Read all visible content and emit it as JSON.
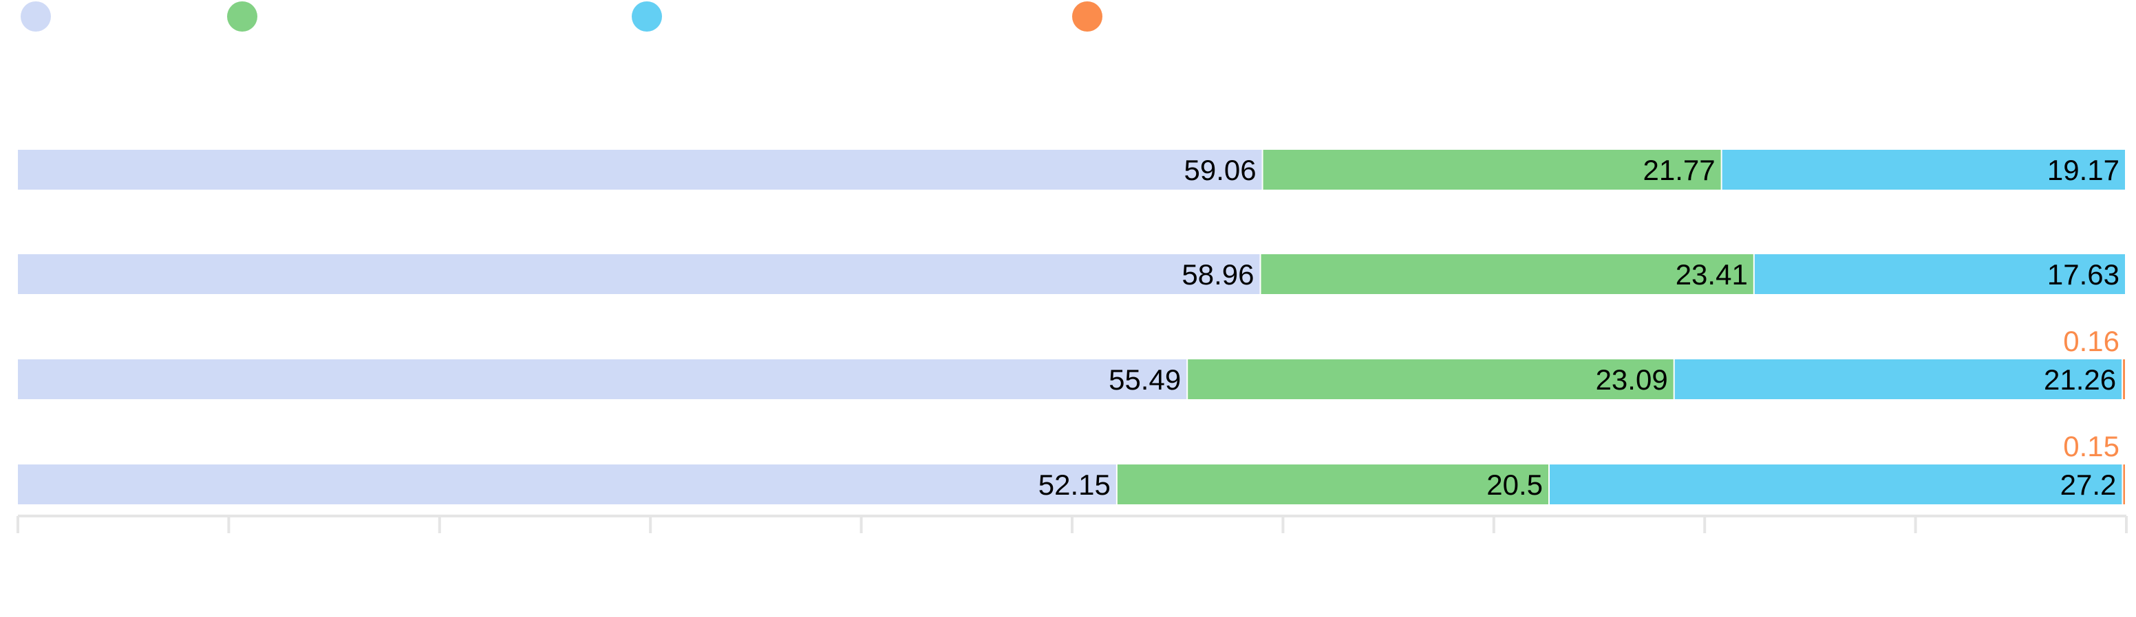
{
  "chart_data": {
    "type": "bar",
    "orientation": "horizontal",
    "stacked": true,
    "categories": [
      "",
      "",
      "",
      ""
    ],
    "series": [
      {
        "color": "#cfdaf6",
        "values": [
          59.06,
          58.96,
          55.49,
          52.15
        ],
        "label_color": "#000000"
      },
      {
        "color": "#82d184",
        "values": [
          21.77,
          23.41,
          23.09,
          20.5
        ],
        "label_color": "#000000"
      },
      {
        "color": "#63cff3",
        "values": [
          19.17,
          17.63,
          21.26,
          27.2
        ],
        "label_color": "#000000"
      },
      {
        "color": "#fb8c4c",
        "values": [
          0,
          0,
          0.16,
          0.15
        ],
        "label_color": "#fb8c4c"
      }
    ],
    "xlim": [
      0,
      100
    ],
    "x_ticks": [
      0,
      10,
      20,
      30,
      40,
      50,
      60,
      70,
      80,
      90,
      100
    ],
    "legend_position": "top-left",
    "grid": false,
    "axis_color": "#e5e5e5"
  }
}
